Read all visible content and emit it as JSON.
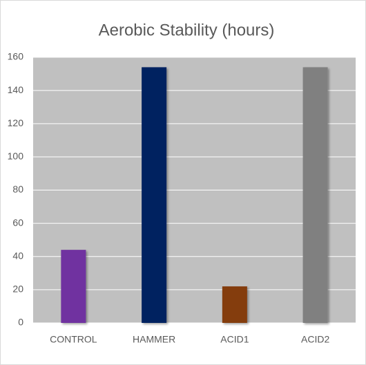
{
  "chart_data": {
    "type": "bar",
    "title": "Aerobic Stability (hours)",
    "categories": [
      "CONTROL",
      "HAMMER",
      "ACID1",
      "ACID2"
    ],
    "values": [
      44,
      154,
      22,
      154
    ],
    "colors": [
      "#7030a0",
      "#002060",
      "#843c0c",
      "#808080"
    ],
    "plot_background": "#c0c0c0",
    "ylim": [
      0,
      160
    ],
    "yticks": [
      0,
      20,
      40,
      60,
      80,
      100,
      120,
      140,
      160
    ],
    "grid": true
  }
}
